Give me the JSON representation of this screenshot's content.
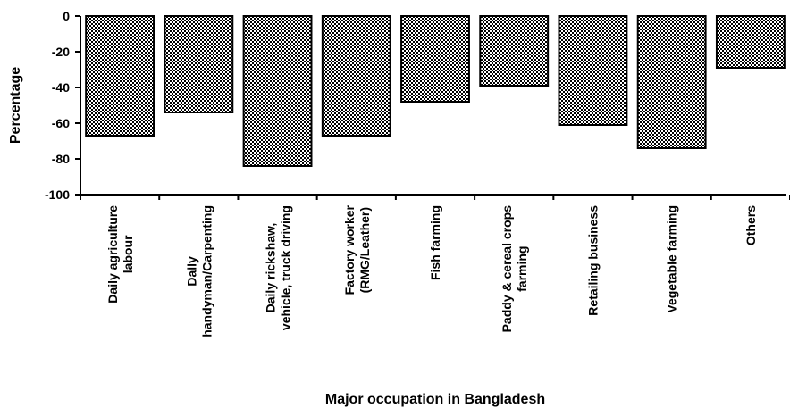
{
  "chart_data": {
    "type": "bar",
    "x_label": "Major occupation in Bangladesh",
    "y_label": "Percentage",
    "categories": [
      "Daily agriculture\nlabour",
      "Daily\nhandyman/Carpenting",
      "Daily rickshaw,\nvehicle, truck driving",
      "Factory worker\n(RMG/Leather)",
      "Fish farming",
      "Paddy & cereal crops\nfarming",
      "Retailing business",
      "Vegetable farming",
      "Others"
    ],
    "values": [
      -67,
      -54,
      -84,
      -67,
      -48,
      -39,
      -61,
      -74,
      -29
    ],
    "color": "#000000",
    "ylim": [
      -100,
      0
    ],
    "yticks": [
      0,
      -20,
      -40,
      -60,
      -80,
      -100
    ],
    "grid": false
  }
}
